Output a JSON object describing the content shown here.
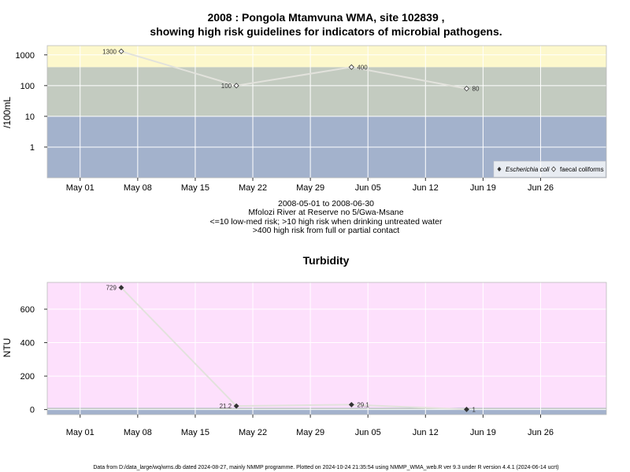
{
  "chart_data": [
    {
      "type": "line",
      "title_line1": "2008 : Pongola Mtamvuna WMA, site 102839 ,",
      "title_line2": "showing high risk guidelines for indicators of microbial pathogens.",
      "ylabel": "/100mL",
      "y_scale": "log",
      "ylim": [
        0.1,
        2000
      ],
      "xlim": [
        "2008-04-27",
        "2008-07-04"
      ],
      "x_ticks": [
        "May 01",
        "May 08",
        "May 15",
        "May 22",
        "May 29",
        "Jun 05",
        "Jun 12",
        "Jun 19",
        "Jun 26"
      ],
      "y_ticks": [
        "1",
        "10",
        "100",
        "1000"
      ],
      "bands": [
        {
          "from": 0.1,
          "to": 10,
          "color": "#a3b2cc"
        },
        {
          "from": 10,
          "to": 400,
          "color": "#c3cbc0"
        },
        {
          "from": 400,
          "to": 2000,
          "color": "#fdf8cc"
        }
      ],
      "series": [
        {
          "name": "faecal coliforms",
          "marker": "open-diamond",
          "x": [
            "2008-05-06",
            "2008-05-20",
            "2008-06-03",
            "2008-06-17"
          ],
          "values": [
            1300,
            100,
            400,
            80
          ],
          "labels": [
            "1300",
            "100",
            "400",
            "80"
          ]
        }
      ],
      "legend": {
        "position": "bottom-right",
        "entries": [
          "Escherichia coli",
          "faecal coliforms"
        ]
      },
      "caption": [
        "2008-05-01 to 2008-06-30",
        "Mfolozi River at Reserve no 5/Gwa-Msane",
        "<=10 low-med risk; >10 high risk when drinking untreated water",
        ">400 high risk from full or partial contact"
      ]
    },
    {
      "type": "line",
      "title": "Turbidity",
      "ylabel": "NTU",
      "ylim": [
        -30,
        760
      ],
      "xlim": [
        "2008-04-27",
        "2008-07-04"
      ],
      "x_ticks": [
        "May 01",
        "May 08",
        "May 15",
        "May 22",
        "May 29",
        "Jun 05",
        "Jun 12",
        "Jun 19",
        "Jun 26"
      ],
      "y_ticks": [
        "0",
        "200",
        "400",
        "600"
      ],
      "series": [
        {
          "name": "Turbidity",
          "marker": "filled-diamond",
          "x": [
            "2008-05-06",
            "2008-05-20",
            "2008-06-03",
            "2008-06-17"
          ],
          "values": [
            729,
            21.2,
            29.1,
            1
          ],
          "labels": [
            "729",
            "21.2",
            "29.1",
            "1"
          ]
        }
      ]
    }
  ],
  "footer": "Data from D:/data_large/wq/wms.db dated 2024-08-27, mainly NMMP programme. Plotted on 2024-10-24 21:35:54 using NMMP_WMA_web.R ver 9.3 under R version 4.4.1 (2024-06-14 ucrt)"
}
